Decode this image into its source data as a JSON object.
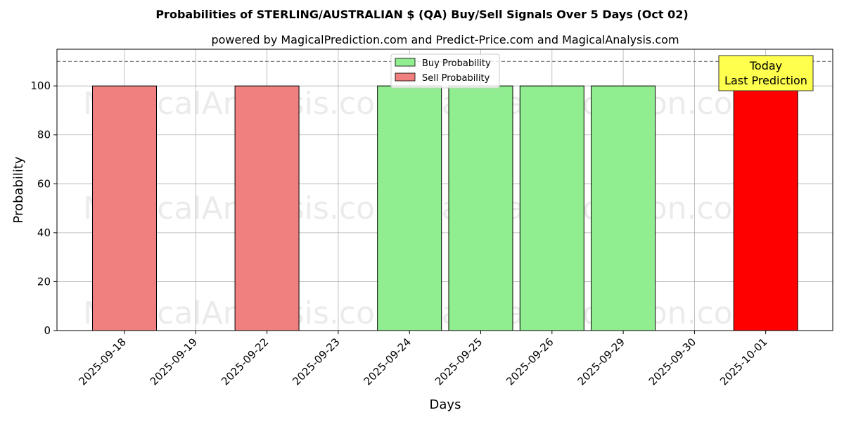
{
  "chart_data": {
    "type": "bar",
    "title": "Probabilities of STERLING/AUSTRALIAN $ (QA) Buy/Sell Signals Over 5 Days (Oct 02)",
    "subtitle": "powered by MagicalPrediction.com and Predict-Price.com and MagicalAnalysis.com",
    "xlabel": "Days",
    "ylabel": "Probability",
    "ylim": [
      0,
      115
    ],
    "yticks": [
      0,
      20,
      40,
      60,
      80,
      100
    ],
    "grid": true,
    "categories": [
      "2025-09-18",
      "2025-09-19",
      "2025-09-22",
      "2025-09-23",
      "2025-09-24",
      "2025-09-25",
      "2025-09-26",
      "2025-09-29",
      "2025-09-30",
      "2025-10-01"
    ],
    "series": [
      {
        "name": "Buy Probability",
        "color": "#90ee90",
        "values": [
          null,
          null,
          null,
          null,
          100,
          100,
          100,
          100,
          null,
          null
        ]
      },
      {
        "name": "Sell Probability",
        "color": "#f08080",
        "values": [
          100,
          null,
          100,
          null,
          null,
          null,
          null,
          null,
          null,
          100
        ]
      }
    ],
    "highlight": {
      "category": "2025-10-01",
      "color": "#ff0000"
    },
    "reference_line": {
      "y": 110,
      "style": "dashed",
      "color": "#808080"
    },
    "legend": {
      "placement": "top-center"
    },
    "annotation": {
      "line1": "Today",
      "line2": "Last Prediction",
      "color": "#ffff4d"
    },
    "watermarks": [
      "MagicalAnalysis.com",
      "MagicalPrediction.com"
    ]
  }
}
